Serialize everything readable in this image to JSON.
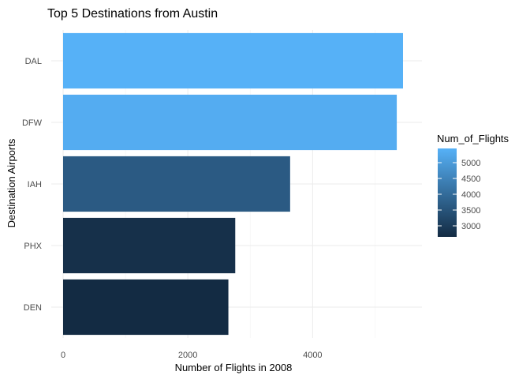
{
  "chart_data": {
    "type": "bar",
    "orientation": "horizontal",
    "title": "Top 5 Destinations from Austin",
    "xlabel": "Number of Flights in 2008",
    "ylabel": "Destination Airports",
    "categories": [
      "DAL",
      "DFW",
      "IAH",
      "PHX",
      "DEN"
    ],
    "values": [
      5450,
      5350,
      3640,
      2760,
      2650
    ],
    "xlim": [
      0,
      5700
    ],
    "xticks": [
      0,
      2000,
      4000
    ],
    "grid": true,
    "legend": {
      "title": "Num_of_Flights",
      "placement": "right",
      "range": [
        2650,
        5450
      ],
      "ticks": [
        3000,
        3500,
        4000,
        4500,
        5000
      ],
      "color_low": "#132b43",
      "color_high": "#56b1f7"
    }
  }
}
